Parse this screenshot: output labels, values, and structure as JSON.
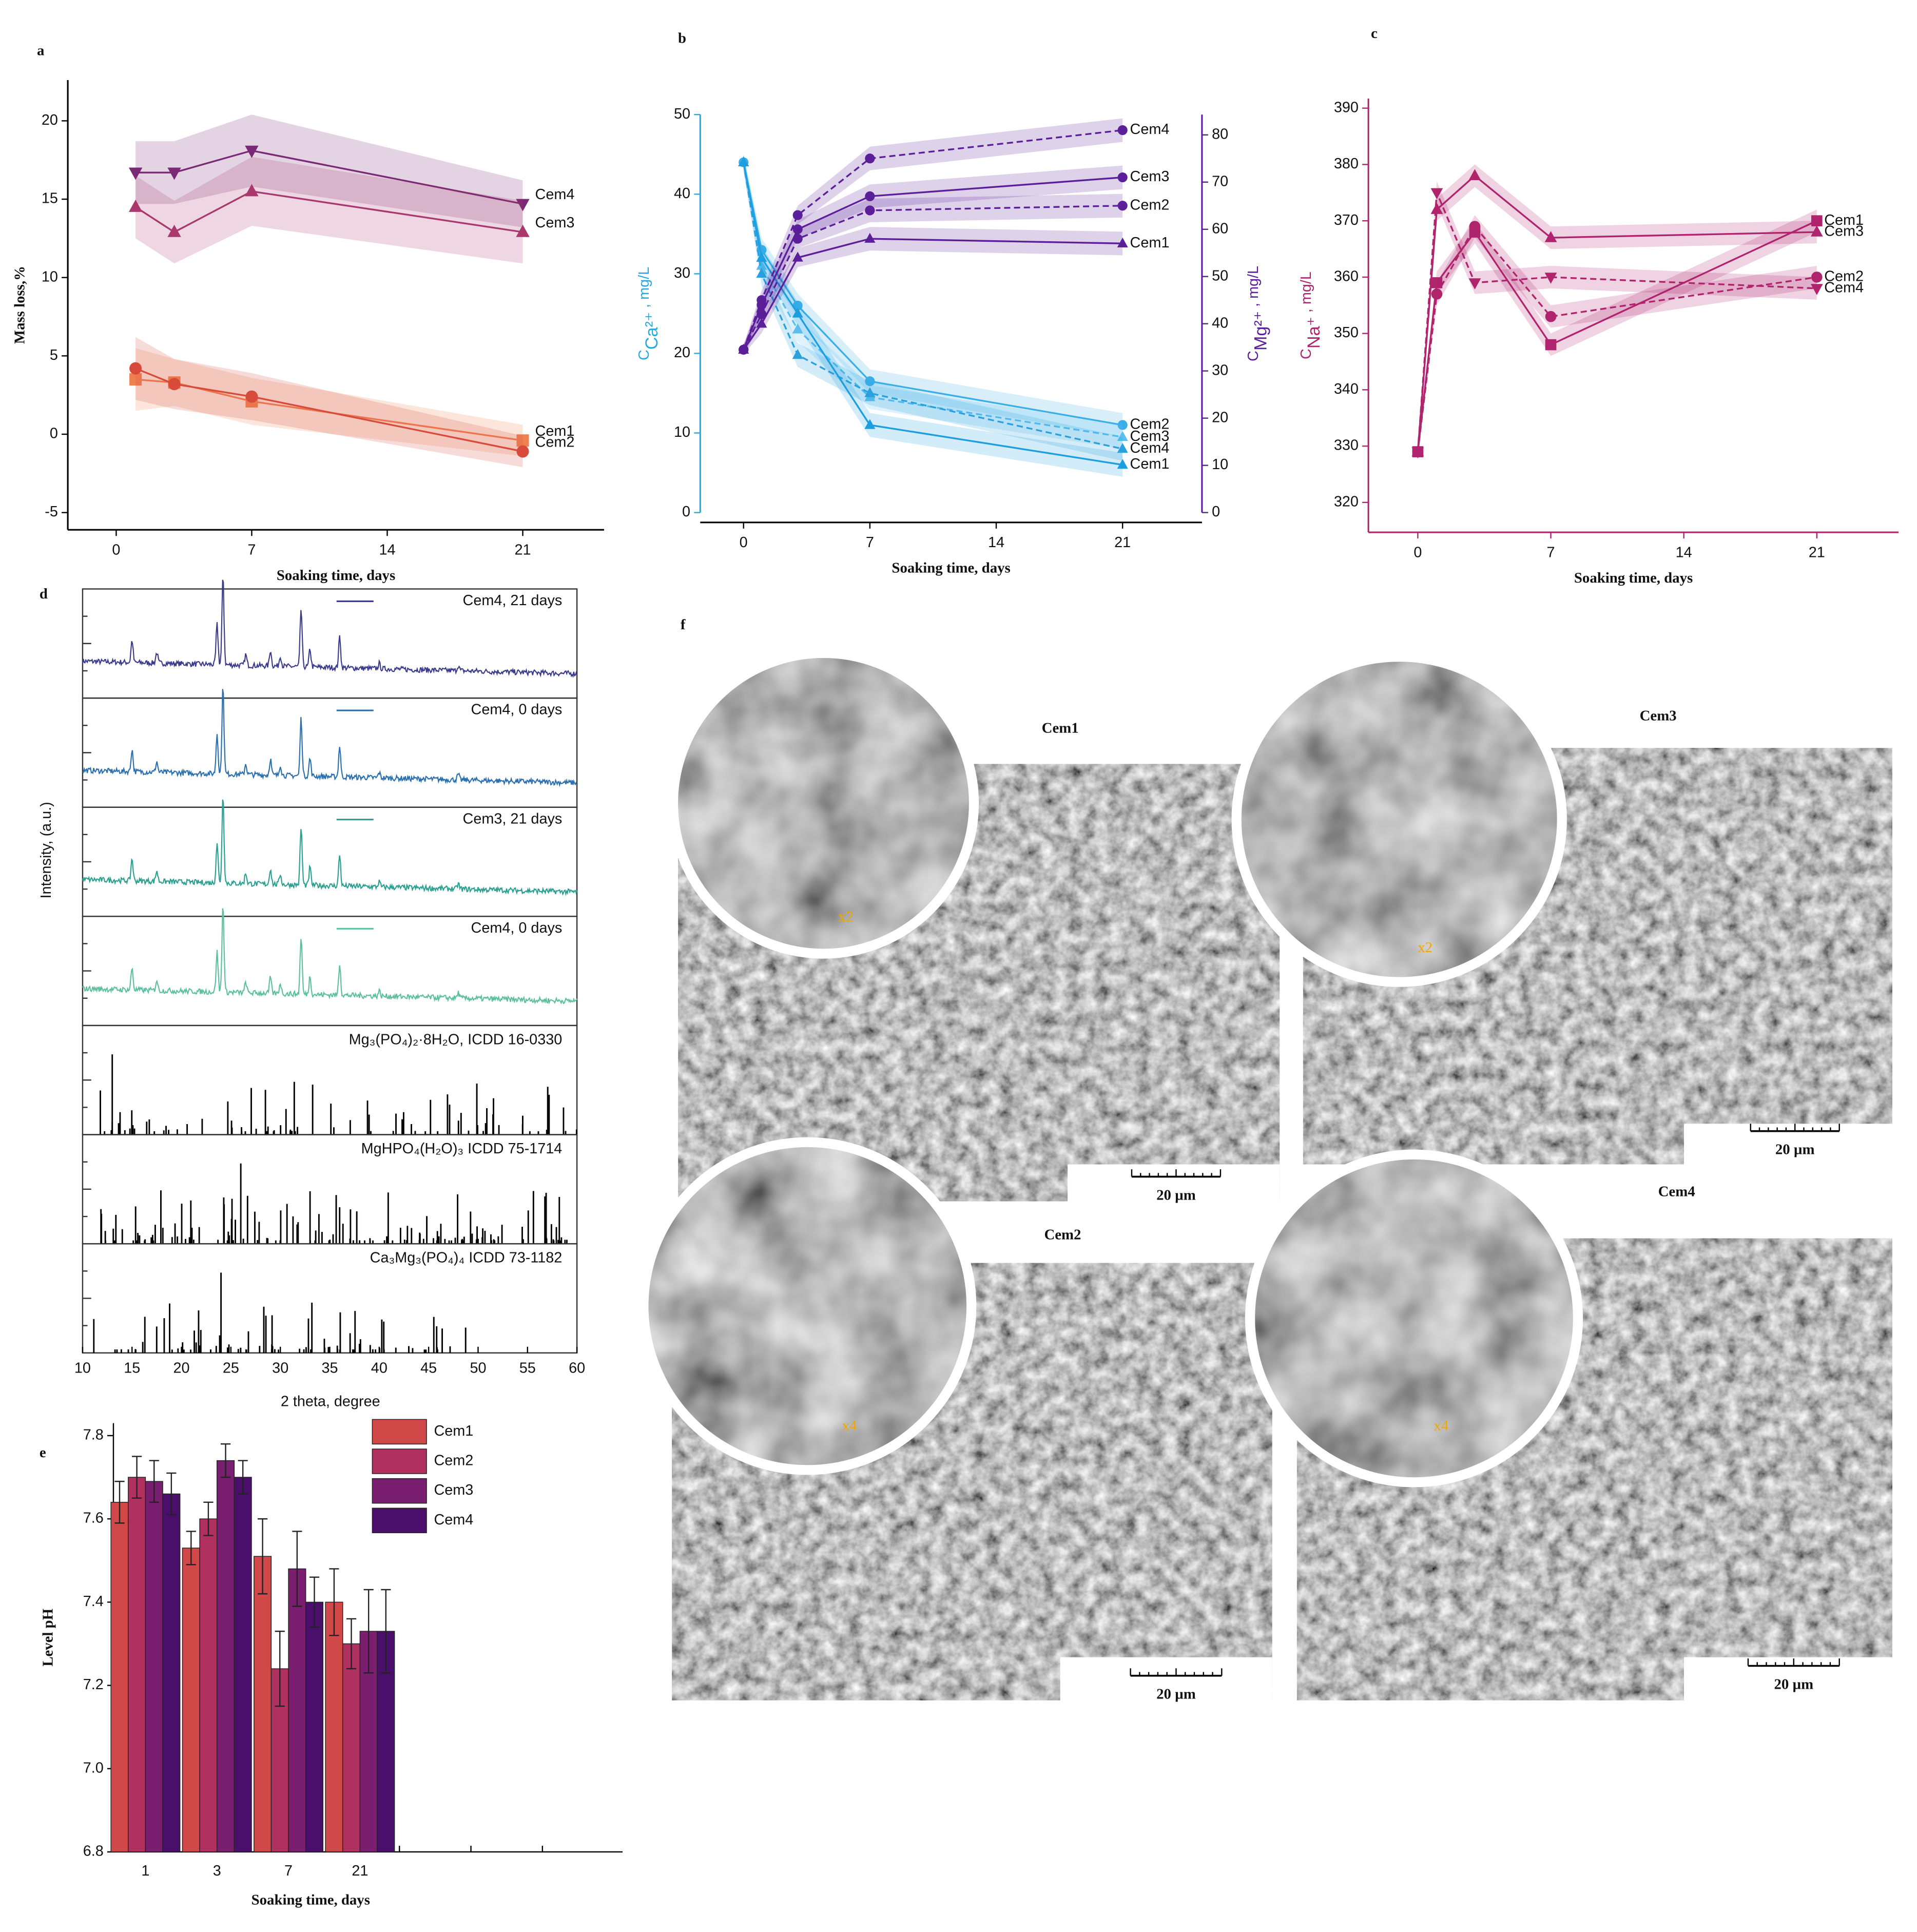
{
  "chart_data": [
    {
      "panel": "a",
      "type": "line",
      "x": [
        1,
        3,
        7,
        21
      ],
      "xlim": [
        -2.5,
        25.2
      ],
      "xticks": [
        0,
        7,
        14,
        21
      ],
      "ylim": [
        -6.1,
        22.6
      ],
      "yticks": [
        -5,
        0,
        5,
        10,
        15,
        20
      ],
      "xlabel": "Soaking time, days",
      "ylabel": "Mass loss,%",
      "series": [
        {
          "name": "Cem4",
          "color": "#7a2a74",
          "marker": "down-triangle",
          "values": [
            16.7,
            16.7,
            18.1,
            14.7
          ],
          "errors": [
            2,
            2,
            2.3,
            1.5
          ]
        },
        {
          "name": "Cem3",
          "color": "#a8386e",
          "marker": "triangle",
          "values": [
            14.5,
            12.9,
            15.5,
            12.9
          ],
          "errors": [
            2,
            2,
            2.2,
            2
          ]
        },
        {
          "name": "Cem1",
          "color": "#f08050",
          "marker": "square",
          "values": [
            3.5,
            3.3,
            2.1,
            -0.4
          ],
          "errors": [
            2,
            1.5,
            1.5,
            1
          ]
        },
        {
          "name": "Cem2",
          "color": "#d84a3a",
          "marker": "circle",
          "values": [
            4.2,
            3.2,
            2.4,
            -1.1
          ],
          "errors": [
            2,
            1.6,
            1.5,
            1
          ]
        }
      ]
    },
    {
      "panel": "b",
      "type": "line",
      "x": [
        0,
        1,
        3,
        7,
        21
      ],
      "xlim": [
        -2.4,
        25.4
      ],
      "xticks": [
        0,
        7,
        14,
        21
      ],
      "ylim": [
        0,
        50
      ],
      "yticks": [
        0,
        10,
        20,
        30,
        40,
        50
      ],
      "y2lim": [
        0,
        84.3
      ],
      "y2ticks": [
        0,
        10,
        20,
        30,
        40,
        50,
        60,
        70,
        80
      ],
      "ycolor": "#29a9e0",
      "y2color": "#5b1f9a",
      "xlabel": "Soaking time, days",
      "ylabel": {
        "symbol": "C",
        "sub": "Ca²⁺",
        "unit": " , mg/L"
      },
      "y2label": {
        "symbol": "C",
        "sub": "Mg²⁺",
        "unit": " , mg/L"
      },
      "series": [
        {
          "name": "Cem2",
          "color": "#3aaee8",
          "marker": "circle",
          "values": [
            44,
            33,
            26,
            16.5,
            11
          ],
          "errors": [
            1,
            1.5,
            1.5,
            1.5,
            1.5
          ]
        },
        {
          "name": "Cem3",
          "color": "#5cbef0",
          "marker": "triangle",
          "values": [
            44,
            31,
            23,
            14.5,
            9.5
          ],
          "errors": [
            1,
            1.5,
            1.5,
            1.5,
            1.5
          ],
          "dash": true
        },
        {
          "name": "Cem4",
          "color": "#2aa0dc",
          "marker": "triangle",
          "values": [
            44,
            30,
            19.8,
            15,
            8
          ],
          "errors": [
            1,
            1.5,
            1.5,
            1.5,
            1.5
          ],
          "dash": true
        },
        {
          "name": "Cem1",
          "color": "#1e9ee0",
          "marker": "triangle",
          "values": [
            44,
            32,
            25,
            11,
            6
          ],
          "errors": [
            1,
            1.5,
            1.5,
            1.5,
            1.5
          ]
        },
        {
          "name": "Cem4",
          "axis": "y2",
          "color": "#5b1f9a",
          "marker": "circle",
          "values": [
            34.5,
            45,
            63,
            75,
            81
          ],
          "errors": [
            1,
            2,
            2,
            2.5,
            2.5
          ],
          "dash": true
        },
        {
          "name": "Cem3",
          "axis": "y2",
          "color": "#5b1f9a",
          "marker": "circle",
          "values": [
            34.5,
            44,
            60,
            67,
            71
          ],
          "errors": [
            1,
            2,
            2,
            2.5,
            2.5
          ]
        },
        {
          "name": "Cem2",
          "axis": "y2",
          "color": "#5b1f9a",
          "marker": "circle",
          "values": [
            34.5,
            42,
            58,
            64,
            65
          ],
          "errors": [
            1,
            2,
            2,
            2.5,
            2.5
          ],
          "dash": true
        },
        {
          "name": "Cem1",
          "axis": "y2",
          "color": "#5b1f9a",
          "marker": "triangle",
          "values": [
            34.5,
            40,
            54,
            58,
            57
          ],
          "errors": [
            1,
            2,
            2,
            2.5,
            2.5
          ]
        }
      ]
    },
    {
      "panel": "c",
      "type": "line",
      "x": [
        0,
        1,
        3,
        7,
        21
      ],
      "xlim": [
        -2.6,
        25.3
      ],
      "xticks": [
        0,
        7,
        14,
        21
      ],
      "ylim": [
        314.7,
        391.7
      ],
      "yticks": [
        320,
        330,
        340,
        350,
        360,
        370,
        380,
        390
      ],
      "axis_color": "#b0246e",
      "xlabel": "Soaking time, days",
      "ylabel": {
        "symbol": "C",
        "sub": "Na⁺",
        "unit": " , mg/L"
      },
      "series": [
        {
          "name": "Cem1",
          "color": "#b0246e",
          "marker": "square",
          "values": [
            329,
            359,
            368,
            348,
            370
          ],
          "errors": [
            0.5,
            2,
            2,
            2,
            2
          ]
        },
        {
          "name": "Cem3",
          "color": "#b0246e",
          "marker": "triangle",
          "values": [
            329,
            372,
            378,
            367,
            368
          ],
          "errors": [
            0.5,
            2,
            2,
            2,
            2
          ]
        },
        {
          "name": "Cem2",
          "color": "#b0246e",
          "marker": "circle",
          "values": [
            329,
            357,
            369,
            353,
            360
          ],
          "errors": [
            0.5,
            2,
            2,
            2,
            2
          ],
          "dash": true
        },
        {
          "name": "Cem4",
          "color": "#b0246e",
          "marker": "down-triangle",
          "values": [
            329,
            375,
            359,
            360,
            358
          ],
          "errors": [
            0.5,
            2,
            2,
            2,
            2
          ],
          "dash": true
        }
      ]
    },
    {
      "panel": "d",
      "type": "xrd",
      "xlim": [
        10,
        60
      ],
      "xticks": [
        10,
        15,
        20,
        25,
        30,
        35,
        40,
        45,
        50,
        55,
        60
      ],
      "xlabel": "2 theta, degree",
      "ylabel": "Intensity, (a.u.)",
      "traces": [
        {
          "name": "Cem4, 21 days",
          "color": "#3b3a8c"
        },
        {
          "name": "Cem4, 0 days",
          "color": "#2a6fb0"
        },
        {
          "name": "Cem3, 21 days",
          "color": "#2aa090"
        },
        {
          "name": "Cem4, 0 days",
          "color": "#5cc0a0"
        }
      ],
      "references": [
        {
          "name": "Mg₃(PO₄)₂·8H₂O, ICDD 16-0330",
          "color": "#000000"
        },
        {
          "name": "MgHPO₄(H₂O)₃ ICDD 75-1714",
          "color": "#000000"
        },
        {
          "name": "Ca₃Mg₃(PO₄)₄ ICDD 73-1182",
          "color": "#000000"
        }
      ]
    },
    {
      "panel": "e",
      "type": "bar",
      "categories": [
        "1",
        "3",
        "7",
        "21"
      ],
      "ylim": [
        6.8,
        7.83
      ],
      "yticks": [
        6.8,
        {
          "value": 7,
          "label": "7.0"
        },
        7.2,
        7.4,
        7.6,
        7.8
      ],
      "xlabel": "Soaking time, days",
      "ylabel": "Level pH",
      "legend": "top-right",
      "series": [
        {
          "name": "Cem1",
          "color": "#d04848",
          "values": [
            7.64,
            7.53,
            7.51,
            7.4
          ],
          "errors": [
            0.05,
            0.04,
            0.09,
            0.08
          ]
        },
        {
          "name": "Cem2",
          "color": "#b03060",
          "values": [
            7.7,
            7.6,
            7.24,
            7.3
          ],
          "errors": [
            0.05,
            0.04,
            0.09,
            0.06
          ]
        },
        {
          "name": "Cem3",
          "color": "#7a1f70",
          "values": [
            7.69,
            7.74,
            7.48,
            7.33
          ],
          "errors": [
            0.05,
            0.04,
            0.09,
            0.1
          ]
        },
        {
          "name": "Cem4",
          "color": "#4a0f6b",
          "values": [
            7.66,
            7.7,
            7.4,
            7.33
          ],
          "errors": [
            0.05,
            0.04,
            0.06,
            0.1
          ]
        }
      ]
    }
  ],
  "sem": {
    "panel": "f",
    "images": [
      {
        "name": "Cem1",
        "zoom": "x2",
        "scale_bar": "20 µm"
      },
      {
        "name": "Cem3",
        "zoom": "x2",
        "scale_bar": "20 µm"
      },
      {
        "name": "Cem2",
        "zoom": "x4",
        "scale_bar": "20 µm"
      },
      {
        "name": "Cem4",
        "zoom": "x4",
        "scale_bar": "20 µm"
      }
    ]
  }
}
